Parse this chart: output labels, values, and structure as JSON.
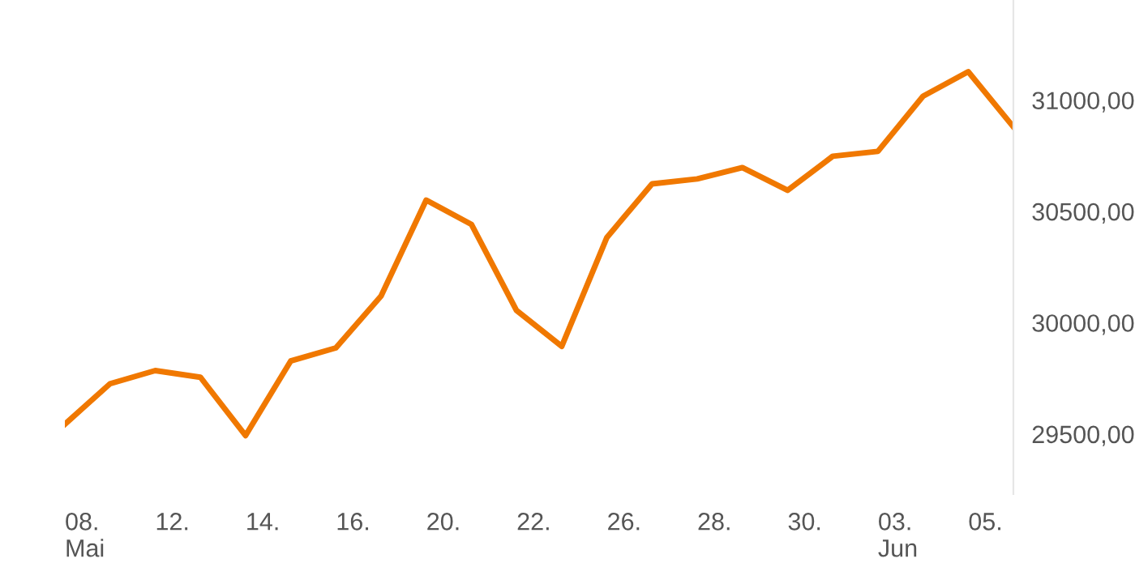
{
  "chart_data": {
    "type": "line",
    "categories": [
      "08.\nMai",
      null,
      "12.",
      null,
      "14.",
      null,
      "16.",
      null,
      "20.",
      null,
      "22.",
      null,
      "26.",
      null,
      "28.",
      null,
      "30.",
      null,
      "03.\nJun",
      null,
      "05.",
      null
    ],
    "series": [
      {
        "color": "#f07800",
        "values": [
          29544,
          29726,
          29785,
          29755,
          29493,
          29828,
          29887,
          30120,
          30551,
          30442,
          30055,
          29894,
          30383,
          30624,
          30646,
          30697,
          30595,
          30748,
          30770,
          31018,
          31128,
          30880
        ]
      }
    ],
    "ylim": [
      29230,
      31450
    ],
    "yticks": [
      {
        "value": 29500,
        "label": "29500,00"
      },
      {
        "value": 30000,
        "label": "30000,00"
      },
      {
        "value": 30500,
        "label": "30500,00"
      },
      {
        "value": 31000,
        "label": "31000,00"
      }
    ],
    "grid": false,
    "legend": false,
    "marker": "none",
    "line_style": "solid"
  }
}
